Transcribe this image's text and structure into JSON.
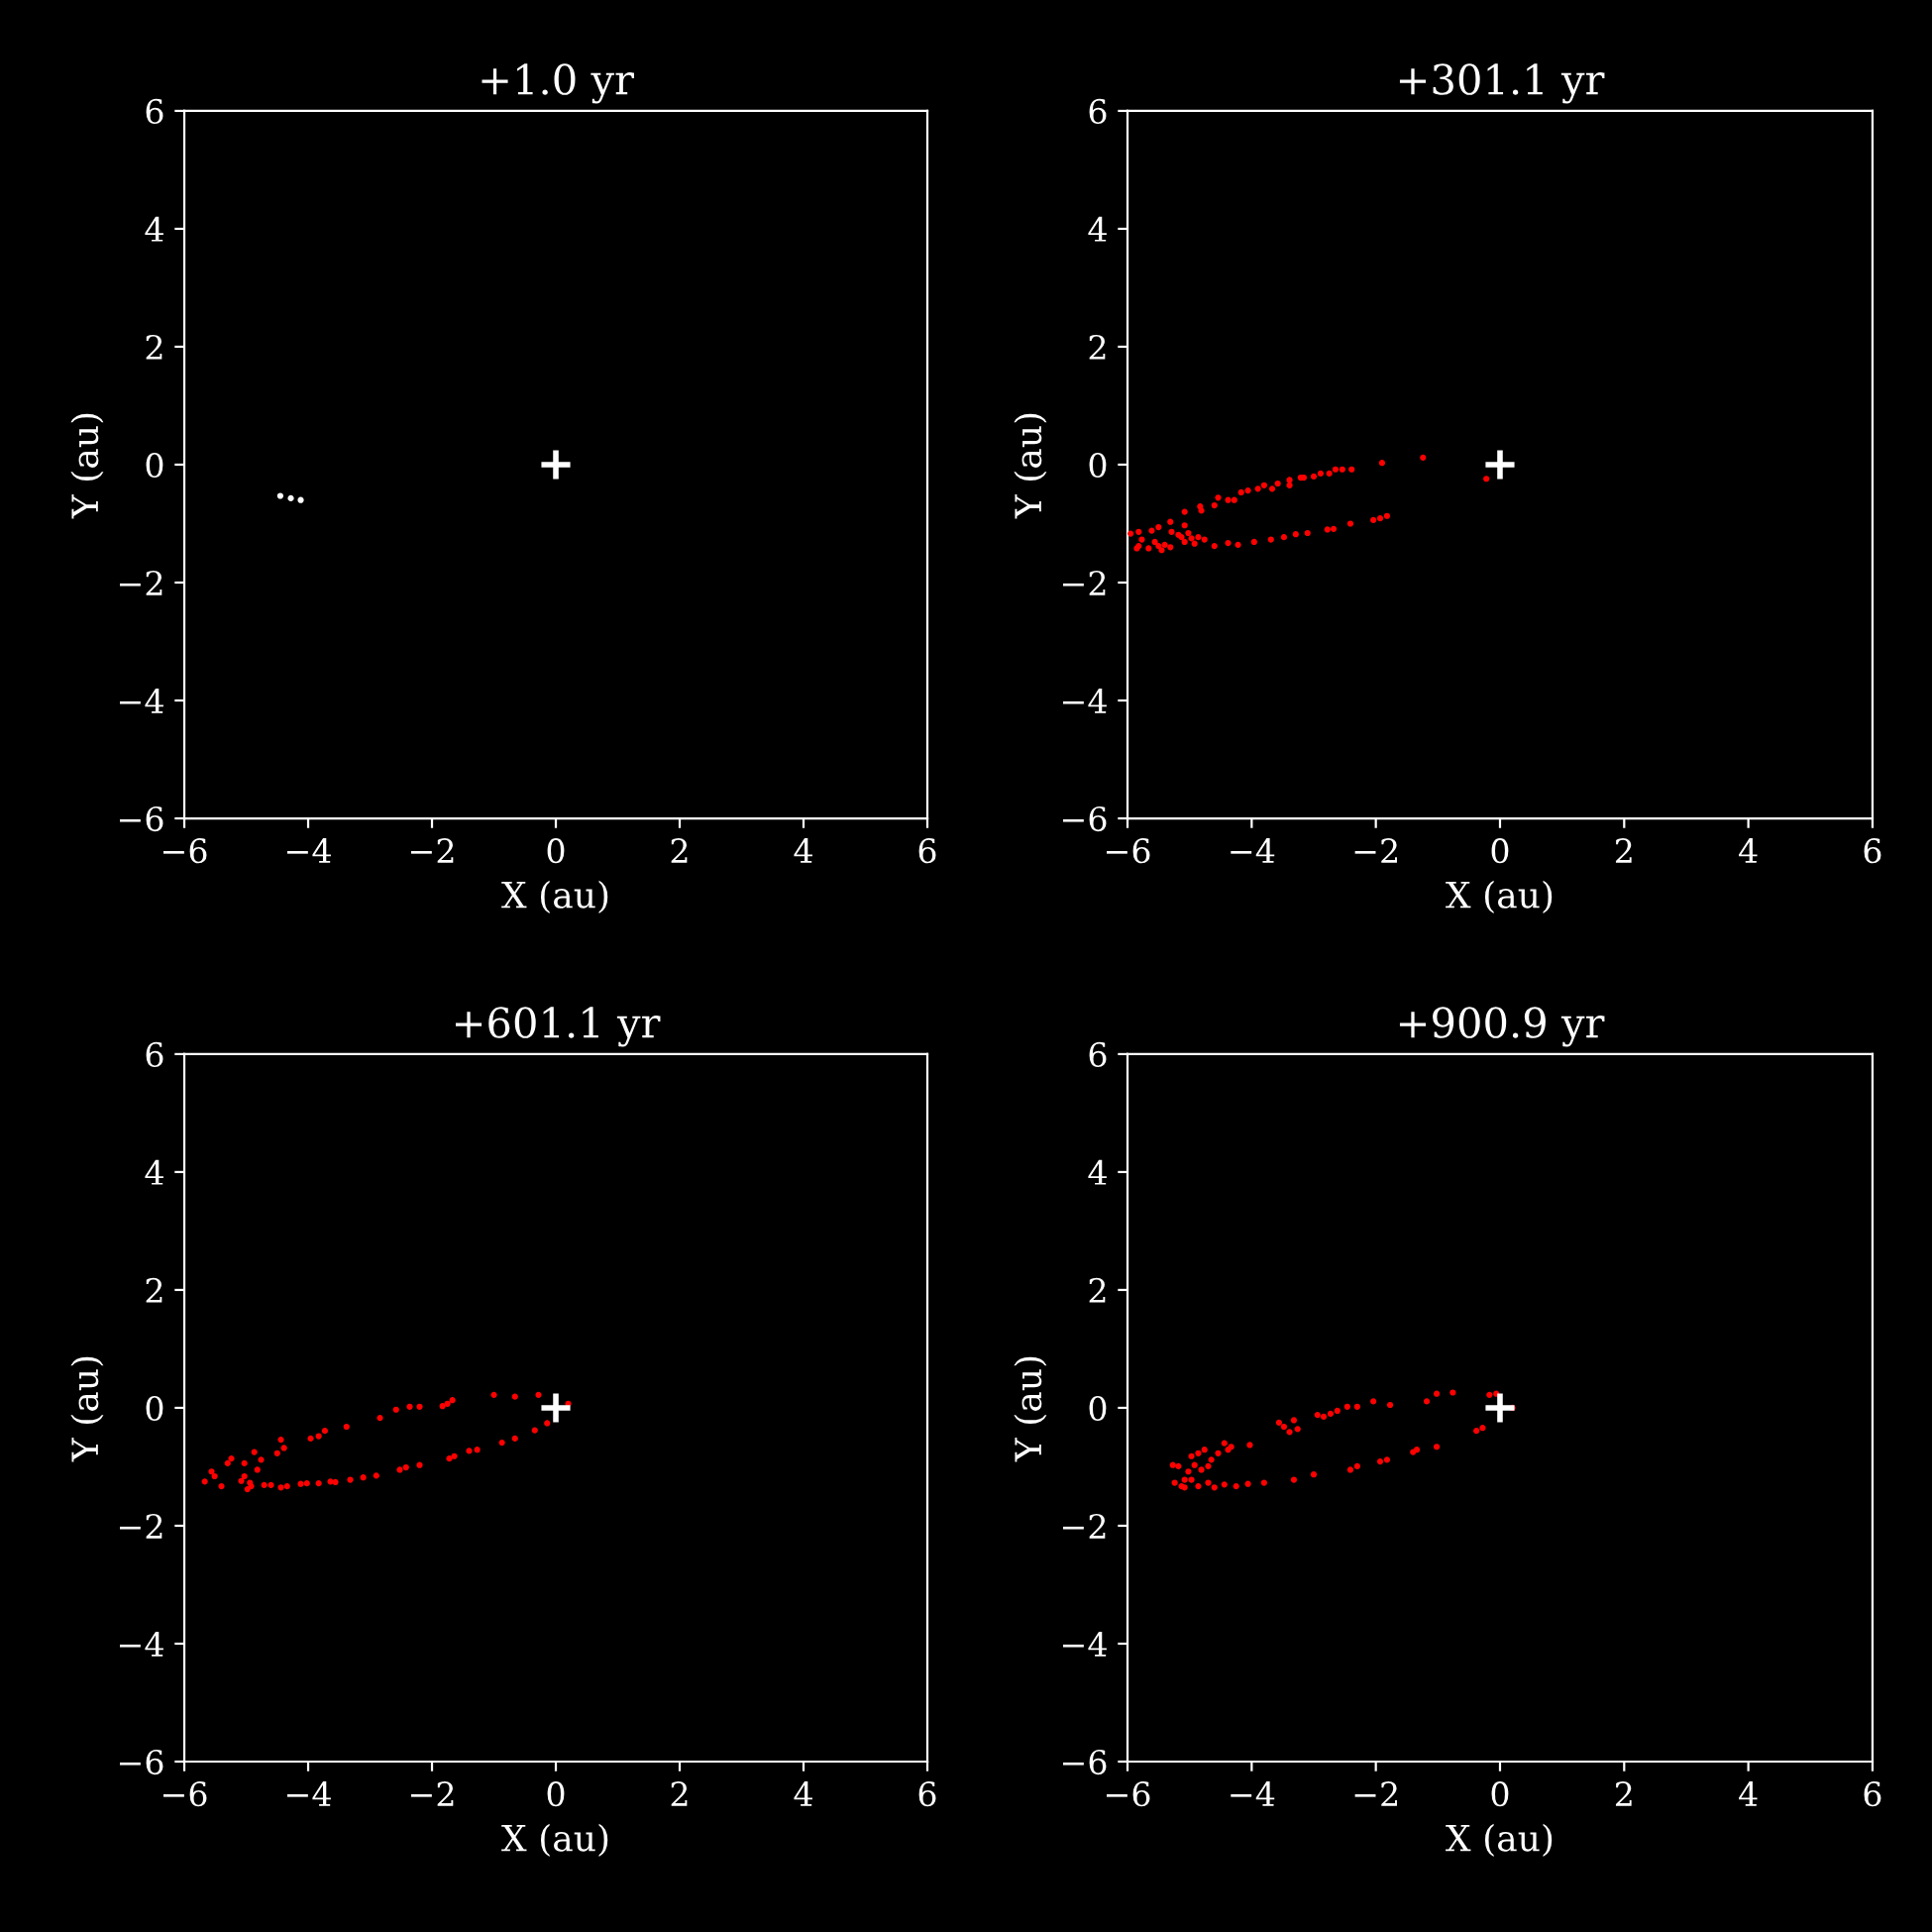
{
  "chart_data": [
    {
      "type": "scatter",
      "title": "+1.0 yr",
      "xlabel": "X (au)",
      "ylabel": "Y (au)",
      "xlim": [
        -6,
        6
      ],
      "ylim": [
        -6,
        6
      ],
      "xticks": [
        -6,
        -4,
        -2,
        0,
        2,
        4,
        6
      ],
      "yticks": [
        -6,
        -4,
        -2,
        0,
        2,
        4,
        6
      ],
      "grid": false,
      "legend": false,
      "series": [
        {
          "color": "#ffffff",
          "marker": "circle",
          "x": [
            -4.45,
            -4.28,
            -4.12
          ],
          "values": [
            -0.53,
            -0.57,
            -0.6
          ]
        },
        {
          "color": "#ffffff",
          "marker": "cross",
          "x": [
            0
          ],
          "values": [
            0
          ]
        }
      ]
    },
    {
      "type": "scatter",
      "title": "+301.1 yr",
      "xlabel": "X (au)",
      "ylabel": "Y (au)",
      "xlim": [
        -6,
        6
      ],
      "ylim": [
        -6,
        6
      ],
      "xticks": [
        -6,
        -4,
        -2,
        0,
        2,
        4,
        6
      ],
      "yticks": [
        -6,
        -4,
        -2,
        0,
        2,
        4,
        6
      ],
      "grid": false,
      "legend": false,
      "series": [
        {
          "color": "#ff0000",
          "marker": "circle",
          "x": [
            -5.95,
            -5.82,
            -5.61,
            -5.5,
            -5.31,
            -5.08,
            -4.83,
            -4.81,
            -4.6,
            -4.54,
            -4.38,
            -4.28,
            -4.17,
            -4.06,
            -3.9,
            -3.8,
            -3.67,
            -3.58,
            -3.39,
            -3.39,
            -3.21,
            -3.16,
            -3.0,
            -2.89,
            -2.75,
            -2.65,
            -2.54,
            -2.39,
            -1.9,
            -1.24,
            -5.82,
            -5.66,
            -5.45,
            -5.31,
            -5.08,
            -4.92,
            -4.76,
            -4.6,
            -4.38,
            -4.22,
            -3.96,
            -3.69,
            -3.48,
            -3.29,
            -3.1,
            -2.78,
            -2.68,
            -2.41,
            -2.04,
            -1.93,
            -1.82,
            -5.29,
            -5.18,
            -5.08,
            -5.02,
            -5.56,
            -5.5,
            -5.4,
            -5.77,
            -5.13,
            -4.97,
            -4.86,
            -5.85,
            -0.22
          ],
          "values": [
            -1.17,
            -1.14,
            -1.12,
            -1.06,
            -0.97,
            -0.8,
            -0.71,
            -0.78,
            -0.69,
            -0.56,
            -0.6,
            -0.6,
            -0.47,
            -0.44,
            -0.41,
            -0.35,
            -0.41,
            -0.32,
            -0.26,
            -0.35,
            -0.22,
            -0.22,
            -0.2,
            -0.15,
            -0.15,
            -0.08,
            -0.08,
            -0.08,
            0.03,
            0.12,
            -1.38,
            -1.42,
            -1.45,
            -1.4,
            -1.31,
            -1.34,
            -1.27,
            -1.38,
            -1.33,
            -1.36,
            -1.31,
            -1.27,
            -1.23,
            -1.18,
            -1.16,
            -1.1,
            -1.09,
            -1.0,
            -0.94,
            -0.91,
            -0.87,
            -1.14,
            -1.19,
            -1.03,
            -1.16,
            -1.31,
            -1.38,
            -1.36,
            -1.27,
            -1.23,
            -1.25,
            -1.23,
            -1.42,
            -0.24
          ]
        },
        {
          "color": "#ffffff",
          "marker": "cross",
          "x": [
            0
          ],
          "values": [
            0
          ]
        }
      ]
    },
    {
      "type": "scatter",
      "title": "+601.1 yr",
      "xlabel": "X (au)",
      "ylabel": "Y (au)",
      "xlim": [
        -6,
        6
      ],
      "ylim": [
        -6,
        6
      ],
      "xticks": [
        -6,
        -4,
        -2,
        0,
        2,
        4,
        6
      ],
      "yticks": [
        -6,
        -4,
        -2,
        0,
        2,
        4,
        6
      ],
      "grid": false,
      "legend": false,
      "series": [
        {
          "color": "#ff0000",
          "marker": "circle",
          "x": [
            -5.67,
            -5.56,
            -5.51,
            -5.4,
            -5.3,
            -5.24,
            -5.08,
            -5.03,
            -4.98,
            -4.92,
            -4.87,
            -4.82,
            -4.76,
            -4.71,
            -4.5,
            -4.44,
            -4.39,
            -4.6,
            -4.44,
            -4.34,
            -5.03,
            -4.94,
            -3.96,
            -3.83,
            -3.73,
            -3.38,
            -2.84,
            -2.58,
            -2.36,
            -2.2,
            -1.83,
            -1.75,
            -1.67,
            -1.0,
            -0.66,
            -0.28,
            0.2,
            -4.12,
            -4.02,
            -3.83,
            -3.64,
            -3.56,
            -3.32,
            -3.11,
            -2.9,
            -2.52,
            -2.42,
            -2.2,
            -1.72,
            -1.64,
            -1.4,
            -1.27,
            -0.87,
            -0.66,
            -0.34,
            -0.14
          ],
          "values": [
            -1.25,
            -1.08,
            -1.16,
            -1.33,
            -0.94,
            -0.86,
            -1.24,
            -1.16,
            -1.38,
            -1.33,
            -0.75,
            -1.05,
            -0.88,
            -1.31,
            -0.77,
            -0.54,
            -0.68,
            -1.31,
            -1.35,
            -1.33,
            -0.94,
            -1.27,
            -0.52,
            -0.48,
            -0.39,
            -0.32,
            -0.17,
            -0.03,
            0.02,
            0.02,
            0.03,
            0.07,
            0.13,
            0.22,
            0.19,
            0.22,
            0.07,
            -1.29,
            -1.28,
            -1.28,
            -1.25,
            -1.26,
            -1.22,
            -1.18,
            -1.15,
            -1.05,
            -1.01,
            -0.97,
            -0.86,
            -0.82,
            -0.73,
            -0.71,
            -0.59,
            -0.52,
            -0.38,
            -0.26
          ]
        },
        {
          "color": "#ffffff",
          "marker": "cross",
          "x": [
            0
          ],
          "values": [
            0
          ]
        }
      ]
    },
    {
      "type": "scatter",
      "title": "+900.9 yr",
      "xlabel": "X (au)",
      "ylabel": "Y (au)",
      "xlim": [
        -6,
        6
      ],
      "ylim": [
        -6,
        6
      ],
      "xticks": [
        -6,
        -4,
        -2,
        0,
        2,
        4,
        6
      ],
      "yticks": [
        -6,
        -4,
        -2,
        0,
        2,
        4,
        6
      ],
      "grid": false,
      "legend": false,
      "series": [
        {
          "color": "#ff0000",
          "marker": "circle",
          "x": [
            -5.27,
            -5.24,
            -5.18,
            -5.13,
            -5.08,
            -5.02,
            -4.97,
            -4.92,
            -4.86,
            -4.86,
            -4.81,
            -4.76,
            -4.7,
            -4.65,
            -4.6,
            -4.54,
            -4.44,
            -4.38,
            -4.33,
            -4.7,
            -4.97,
            -5.08,
            -4.03,
            -3.56,
            -3.48,
            -3.39,
            -3.32,
            -3.26,
            -2.94,
            -2.84,
            -2.73,
            -2.62,
            -2.46,
            -2.3,
            -2.04,
            -1.77,
            -1.18,
            -1.02,
            -0.76,
            -0.17,
            -0.06,
            0.2,
            -4.44,
            -4.25,
            -4.06,
            -3.8,
            -3.32,
            -3.0,
            -2.41,
            -2.3,
            -1.93,
            -1.82,
            -1.4,
            -1.34,
            -1.02,
            -0.38,
            -0.28
          ],
          "values": [
            -0.97,
            -1.27,
            -0.99,
            -1.33,
            -1.22,
            -1.08,
            -0.82,
            -0.97,
            -0.77,
            -1.33,
            -1.05,
            -0.71,
            -0.99,
            -0.88,
            -1.35,
            -0.77,
            -0.6,
            -0.71,
            -0.66,
            -1.27,
            -1.22,
            -1.35,
            -0.63,
            -0.25,
            -0.32,
            -0.41,
            -0.21,
            -0.36,
            -0.12,
            -0.15,
            -0.1,
            -0.05,
            0.02,
            0.02,
            0.11,
            0.05,
            0.11,
            0.24,
            0.26,
            0.22,
            0.24,
            0.0,
            -1.3,
            -1.33,
            -1.29,
            -1.27,
            -1.22,
            -1.13,
            -1.05,
            -0.99,
            -0.91,
            -0.88,
            -0.75,
            -0.71,
            -0.66,
            -0.39,
            -0.34
          ]
        },
        {
          "color": "#ffffff",
          "marker": "cross",
          "x": [
            0
          ],
          "values": [
            0
          ]
        }
      ]
    }
  ]
}
